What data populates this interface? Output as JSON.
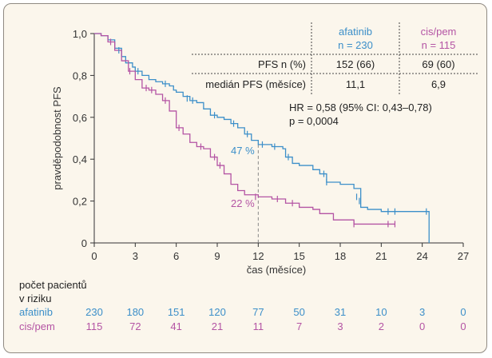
{
  "chart_data": {
    "type": "line",
    "xlabel": "čas (měsíce)",
    "ylabel": "pravděpodobnost PFS",
    "xlim": [
      0,
      27
    ],
    "ylim": [
      0,
      1.0
    ],
    "x_ticks": [
      "0",
      "3",
      "6",
      "9",
      "12",
      "15",
      "18",
      "21",
      "24",
      "27"
    ],
    "y_ticks": [
      "0",
      "0,2",
      "0,4",
      "0,6",
      "0,8",
      "1,0"
    ],
    "colors": {
      "afatinib": "#3c8fc9",
      "cispem": "#b454a4",
      "axis": "#333333",
      "guide": "#888888"
    },
    "series": [
      {
        "name": "afatinib",
        "points": [
          [
            0,
            1.0
          ],
          [
            0.5,
            0.99
          ],
          [
            1,
            0.97
          ],
          [
            1.5,
            0.93
          ],
          [
            2,
            0.89
          ],
          [
            2.3,
            0.86
          ],
          [
            2.8,
            0.84
          ],
          [
            3,
            0.82
          ],
          [
            3.5,
            0.8
          ],
          [
            4,
            0.78
          ],
          [
            4.5,
            0.77
          ],
          [
            5,
            0.76
          ],
          [
            5.5,
            0.75
          ],
          [
            5.8,
            0.73
          ],
          [
            6,
            0.72
          ],
          [
            6.5,
            0.7
          ],
          [
            7,
            0.68
          ],
          [
            7.5,
            0.67
          ],
          [
            8,
            0.64
          ],
          [
            8.5,
            0.61
          ],
          [
            9,
            0.6
          ],
          [
            9.5,
            0.59
          ],
          [
            10,
            0.57
          ],
          [
            10.5,
            0.55
          ],
          [
            11,
            0.52
          ],
          [
            11.5,
            0.49
          ],
          [
            12,
            0.47
          ],
          [
            13,
            0.46
          ],
          [
            13.8,
            0.45
          ],
          [
            14,
            0.41
          ],
          [
            14.5,
            0.38
          ],
          [
            15,
            0.37
          ],
          [
            15.5,
            0.37
          ],
          [
            16,
            0.35
          ],
          [
            16.5,
            0.33
          ],
          [
            17,
            0.29
          ],
          [
            18,
            0.28
          ],
          [
            19,
            0.26
          ],
          [
            19.5,
            0.17
          ],
          [
            20,
            0.16
          ],
          [
            21,
            0.15
          ],
          [
            22,
            0.15
          ],
          [
            24.5,
            0.15
          ],
          [
            24.5,
            0.0
          ]
        ],
        "censored": [
          [
            1.8,
            0.92
          ],
          [
            3.2,
            0.82
          ],
          [
            5.2,
            0.76
          ],
          [
            6.8,
            0.69
          ],
          [
            7.2,
            0.68
          ],
          [
            8.8,
            0.61
          ],
          [
            10.2,
            0.57
          ],
          [
            11.2,
            0.52
          ],
          [
            12.3,
            0.47
          ],
          [
            13.2,
            0.46
          ],
          [
            14.2,
            0.41
          ],
          [
            16.8,
            0.33
          ],
          [
            17.0,
            0.29
          ],
          [
            19.2,
            0.22
          ],
          [
            19.4,
            0.2
          ],
          [
            21.5,
            0.15
          ],
          [
            22.0,
            0.15
          ],
          [
            24.3,
            0.15
          ]
        ]
      },
      {
        "name": "cis/pem",
        "points": [
          [
            0,
            1.0
          ],
          [
            0.5,
            0.99
          ],
          [
            1,
            0.96
          ],
          [
            1.5,
            0.92
          ],
          [
            2,
            0.87
          ],
          [
            2.5,
            0.82
          ],
          [
            3,
            0.78
          ],
          [
            3.5,
            0.74
          ],
          [
            4,
            0.73
          ],
          [
            4.5,
            0.71
          ],
          [
            5,
            0.68
          ],
          [
            5.5,
            0.63
          ],
          [
            6,
            0.55
          ],
          [
            6.5,
            0.52
          ],
          [
            7,
            0.48
          ],
          [
            7.5,
            0.46
          ],
          [
            8,
            0.45
          ],
          [
            8.5,
            0.41
          ],
          [
            9,
            0.37
          ],
          [
            9.5,
            0.33
          ],
          [
            10,
            0.28
          ],
          [
            10.5,
            0.25
          ],
          [
            11,
            0.23
          ],
          [
            12,
            0.22
          ],
          [
            13,
            0.21
          ],
          [
            14,
            0.19
          ],
          [
            15,
            0.17
          ],
          [
            16,
            0.16
          ],
          [
            16.5,
            0.14
          ],
          [
            17.5,
            0.11
          ],
          [
            19,
            0.09
          ],
          [
            22,
            0.09
          ]
        ],
        "censored": [
          [
            1.2,
            0.96
          ],
          [
            2.6,
            0.82
          ],
          [
            3.8,
            0.74
          ],
          [
            4.2,
            0.73
          ],
          [
            5.2,
            0.68
          ],
          [
            6.2,
            0.55
          ],
          [
            7.8,
            0.46
          ],
          [
            8.8,
            0.41
          ],
          [
            9.2,
            0.37
          ],
          [
            11.8,
            0.22
          ],
          [
            13.4,
            0.21
          ],
          [
            14.5,
            0.19
          ],
          [
            19.0,
            0.09
          ],
          [
            21.5,
            0.09
          ],
          [
            22.0,
            0.09
          ]
        ]
      }
    ],
    "annotations": {
      "afatinib_label": "47 %",
      "cispem_label": "22 %",
      "marker_x": 12
    }
  },
  "table": {
    "headers": [
      {
        "line1": "afatinib",
        "line2": "n = 230"
      },
      {
        "line1": "cis/pem",
        "line2": "n = 115"
      }
    ],
    "rows": [
      {
        "label": "PFS n (%)",
        "values": [
          "152 (66)",
          "69 (60)"
        ]
      },
      {
        "label": "medián PFS (měsíce)",
        "values": [
          "11,1",
          "6,9"
        ]
      }
    ]
  },
  "stats": {
    "hr": "HR = 0,58 (95% CI: 0,43–0,78)",
    "p": "p = 0,0004"
  },
  "risk": {
    "title_line1": "počet pacientů",
    "title_line2": "v riziku",
    "rows": [
      {
        "label": "afatinib",
        "values": [
          "230",
          "180",
          "151",
          "120",
          "77",
          "50",
          "31",
          "10",
          "3",
          "0"
        ]
      },
      {
        "label": "cis/pem",
        "values": [
          "115",
          "72",
          "41",
          "21",
          "11",
          "7",
          "3",
          "2",
          "0",
          "0"
        ]
      }
    ]
  }
}
